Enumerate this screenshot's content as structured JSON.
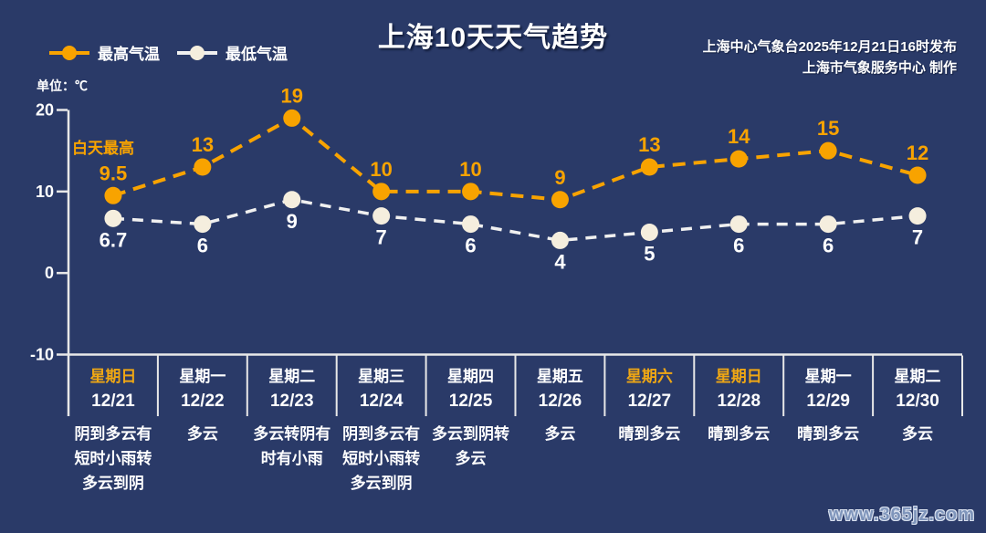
{
  "page": {
    "title": "上海10天天气趋势",
    "publisher_line1": "上海中心气象台2025年12月21日16时发布",
    "publisher_line2": "上海市气象服务中心  制作",
    "unit_label": "单位：℃",
    "annotation_day_max": "白天最高",
    "watermark": "www.365jz.com"
  },
  "legend": {
    "high_label": "最高气温",
    "low_label": "最低气温"
  },
  "colors": {
    "background": "#2A3A68",
    "high": "#F8A300",
    "high_label": "#F8A300",
    "low_line": "#F0F0F0",
    "low_point": "#F5EEDE",
    "low_label": "#FFFFFF",
    "axis": "#E8E8E8",
    "tick_text": "#FFFFFF",
    "weekday_text": "#FFFFFF",
    "weekend_text": "#EFA714",
    "watermark_text": "#7F95BB"
  },
  "chart_data": {
    "type": "line",
    "title": "上海10天天气趋势",
    "unit": "℃",
    "ylim": [
      -10,
      20
    ],
    "yticks": [
      20,
      10,
      0,
      -10
    ],
    "grid": false,
    "legend_position": "top-left",
    "categories": [
      {
        "weekday": "星期日",
        "date": "12/21",
        "weather": "阴到多云有短时小雨转多云到阴",
        "weekend": true
      },
      {
        "weekday": "星期一",
        "date": "12/22",
        "weather": "多云",
        "weekend": false
      },
      {
        "weekday": "星期二",
        "date": "12/23",
        "weather": "多云转阴有时有小雨",
        "weekend": false
      },
      {
        "weekday": "星期三",
        "date": "12/24",
        "weather": "阴到多云有短时小雨转多云到阴",
        "weekend": false
      },
      {
        "weekday": "星期四",
        "date": "12/25",
        "weather": "多云到阴转多云",
        "weekend": false
      },
      {
        "weekday": "星期五",
        "date": "12/26",
        "weather": "多云",
        "weekend": false
      },
      {
        "weekday": "星期六",
        "date": "12/27",
        "weather": "晴到多云",
        "weekend": true
      },
      {
        "weekday": "星期日",
        "date": "12/28",
        "weather": "晴到多云",
        "weekend": true
      },
      {
        "weekday": "星期一",
        "date": "12/29",
        "weather": "晴到多云",
        "weekend": false
      },
      {
        "weekday": "星期二",
        "date": "12/30",
        "weather": "多云",
        "weekend": false
      }
    ],
    "series": [
      {
        "name": "最高气温",
        "values": [
          9.5,
          13,
          19,
          10,
          10,
          9,
          13,
          14,
          15,
          12
        ]
      },
      {
        "name": "最低气温",
        "values": [
          6.7,
          6,
          9,
          7,
          6,
          4,
          5,
          6,
          6,
          7
        ]
      }
    ]
  }
}
